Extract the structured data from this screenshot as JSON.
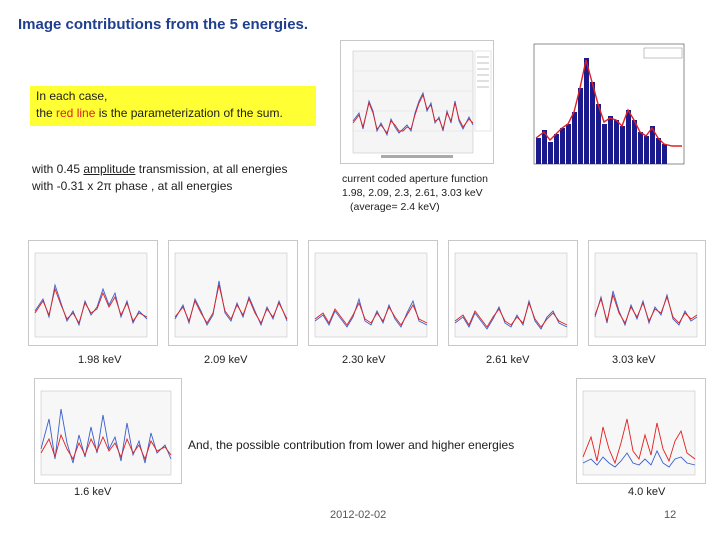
{
  "slide": {
    "title": "Image contributions from the 5 energies.",
    "callout_line1": "In each case,",
    "callout_pre": "the ",
    "callout_red": "red line",
    "callout_post": " is the parameterization of the sum.",
    "desc_pre": "with 0.45 ",
    "desc_ul": "amplitude",
    "desc_post": " transmission, at all energies",
    "desc_line2": "with -0.31 x 2π phase , at all energies",
    "note_line1": "current coded aperture function",
    "note_line2": "1.98, 2.09, 2.3, 2.61, 3.03 keV",
    "note_line3": "(average= 2.4 keV)",
    "lower_higher_text": "And, the possible contribution from lower and higher energies",
    "date": "2012-02-02",
    "page_number": "12"
  },
  "energies": {
    "e1": "1.98 keV",
    "e2": "2.09 keV",
    "e3": "2.30 keV",
    "e4": "2.61 keV",
    "e5": "3.03 keV",
    "low": "1.6 keV",
    "high": "4.0 keV"
  },
  "colors": {
    "title": "#1f3f8f",
    "highlight": "#ffff33",
    "red_line": "#e02020",
    "blue_line": "#3a5fcd",
    "bars": "#1a1a8c"
  }
}
